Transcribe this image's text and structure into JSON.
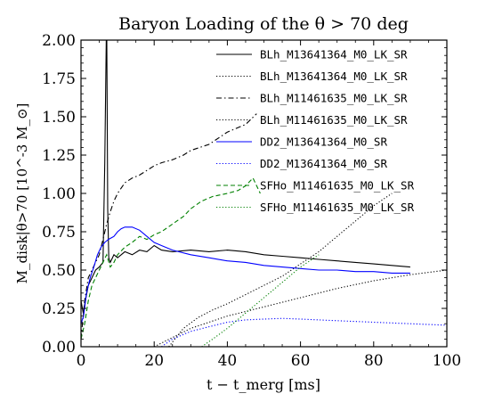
{
  "chart_data": {
    "type": "line",
    "title": "Baryon Loading of the θ > 70 deg",
    "xlabel": "t − t_merg [ms]",
    "ylabel": "M_disk|θ>70 [10^-3 M_⊙]",
    "xlim": [
      0,
      100
    ],
    "ylim": [
      0,
      2.0
    ],
    "xticks": [
      0,
      20,
      40,
      60,
      80,
      100
    ],
    "yticks": [
      0.0,
      0.25,
      0.5,
      0.75,
      1.0,
      1.25,
      1.5,
      1.75,
      2.0
    ],
    "xtick_labels": [
      "0",
      "20",
      "40",
      "60",
      "80",
      "100"
    ],
    "ytick_labels": [
      "0.00",
      "0.25",
      "0.50",
      "0.75",
      "1.00",
      "1.25",
      "1.50",
      "1.75",
      "2.00"
    ],
    "grid": false,
    "legend_position": "top-right",
    "series": [
      {
        "name": "BLh_M13641364_M0_LK_SR",
        "color": "#000000",
        "dash": "solid",
        "x": [
          0,
          0.6,
          1.2,
          2,
          3,
          4,
          5,
          6,
          6.5,
          7,
          7.3,
          7.6,
          8,
          9,
          10,
          12,
          14,
          16,
          18,
          20,
          22,
          25,
          30,
          35,
          40,
          45,
          50,
          55,
          60,
          65,
          70,
          75,
          80,
          85,
          90
        ],
        "y": [
          0.3,
          0.22,
          0.3,
          0.4,
          0.45,
          0.5,
          0.52,
          0.55,
          1.2,
          2.2,
          0.9,
          0.58,
          0.55,
          0.6,
          0.58,
          0.62,
          0.6,
          0.63,
          0.62,
          0.66,
          0.63,
          0.62,
          0.63,
          0.62,
          0.63,
          0.62,
          0.6,
          0.59,
          0.58,
          0.57,
          0.56,
          0.55,
          0.54,
          0.53,
          0.52
        ]
      },
      {
        "name": "BLh_M13641364_M0_LK_SR",
        "color": "#000000",
        "dash": "dotted",
        "x": [
          24,
          28,
          32,
          36,
          40,
          45,
          50,
          55,
          60,
          65,
          70,
          75,
          80,
          85
        ],
        "y": [
          0.0,
          0.12,
          0.19,
          0.24,
          0.28,
          0.34,
          0.4,
          0.46,
          0.54,
          0.62,
          0.72,
          0.82,
          0.92,
          1.0
        ]
      },
      {
        "name": "BLh_M11461635_M0_LK_SR",
        "color": "#000000",
        "dash": "dashdot",
        "x": [
          0,
          1,
          2,
          3,
          4,
          5,
          6,
          7,
          8,
          9,
          10,
          12,
          14,
          16,
          18,
          20,
          22,
          25,
          28,
          30,
          35,
          40,
          45,
          48
        ],
        "y": [
          0.05,
          0.3,
          0.45,
          0.5,
          0.55,
          0.6,
          0.7,
          0.8,
          0.88,
          0.95,
          1.0,
          1.07,
          1.1,
          1.12,
          1.15,
          1.18,
          1.2,
          1.22,
          1.25,
          1.28,
          1.32,
          1.4,
          1.45,
          1.52
        ]
      },
      {
        "name": "BLh_M11461635_M0_LK_SR",
        "color": "#000000",
        "dash": "dotted",
        "x": [
          20,
          30,
          40,
          50,
          60,
          70,
          80,
          90,
          100
        ],
        "y": [
          0.0,
          0.12,
          0.2,
          0.26,
          0.32,
          0.38,
          0.43,
          0.47,
          0.5
        ]
      },
      {
        "name": "DD2_M13641364_M0_SR",
        "color": "#0000ff",
        "dash": "solid",
        "x": [
          0,
          0.7,
          1.5,
          2.5,
          3.5,
          4.5,
          5.5,
          6.5,
          7.5,
          9,
          10,
          11,
          12,
          14,
          16,
          18,
          20,
          22,
          25,
          30,
          35,
          40,
          45,
          50,
          55,
          60,
          65,
          70,
          75,
          80,
          85,
          90
        ],
        "y": [
          0.15,
          0.2,
          0.35,
          0.45,
          0.52,
          0.6,
          0.65,
          0.68,
          0.7,
          0.72,
          0.75,
          0.77,
          0.78,
          0.78,
          0.76,
          0.72,
          0.68,
          0.66,
          0.63,
          0.6,
          0.58,
          0.56,
          0.55,
          0.53,
          0.52,
          0.51,
          0.5,
          0.5,
          0.49,
          0.49,
          0.48,
          0.48
        ]
      },
      {
        "name": "DD2_M13641364_M0_SR",
        "color": "#0000ff",
        "dash": "dotted",
        "x": [
          22,
          25,
          30,
          35,
          40,
          45,
          50,
          55,
          60,
          70,
          80,
          90,
          100
        ],
        "y": [
          0.0,
          0.05,
          0.1,
          0.13,
          0.16,
          0.175,
          0.18,
          0.185,
          0.18,
          0.17,
          0.16,
          0.15,
          0.14
        ]
      },
      {
        "name": "SFHo_M11461635_M0_LK_SR",
        "color": "#008000",
        "dash": "dashed",
        "x": [
          0,
          1,
          2,
          3,
          4,
          5,
          6,
          7,
          8,
          9,
          10,
          12,
          14,
          16,
          18,
          20,
          22,
          25,
          28,
          30,
          33,
          36,
          40,
          43,
          45,
          47,
          49
        ],
        "y": [
          0.05,
          0.15,
          0.3,
          0.4,
          0.45,
          0.5,
          0.55,
          0.6,
          0.52,
          0.55,
          0.6,
          0.65,
          0.68,
          0.72,
          0.7,
          0.73,
          0.75,
          0.8,
          0.85,
          0.9,
          0.95,
          0.98,
          1.0,
          1.02,
          1.05,
          1.1,
          1.0
        ]
      },
      {
        "name": "SFHo_M11461635_M0_LK_SR",
        "color": "#008000",
        "dash": "dotted",
        "x": [
          33,
          36,
          40,
          45,
          50,
          55,
          60,
          65
        ],
        "y": [
          0.0,
          0.05,
          0.12,
          0.22,
          0.32,
          0.42,
          0.52,
          0.6
        ]
      }
    ]
  }
}
